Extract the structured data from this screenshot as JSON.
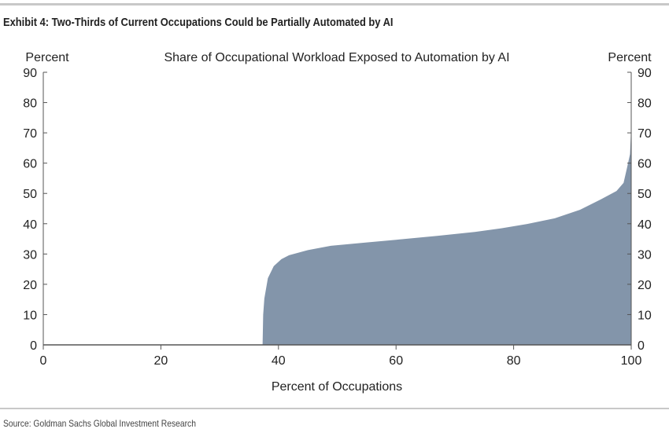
{
  "exhibit_title": "Exhibit 4: Two-Thirds of Current Occupations Could be Partially Automated by AI",
  "source": "Source: Goldman Sachs Global Investment Research",
  "chart_data": {
    "type": "area",
    "title": "Share of Occupational Workload Exposed to Automation by AI",
    "xlabel": "Percent of Occupations",
    "ylabel_left": "Percent",
    "ylabel_right": "Percent",
    "xlim": [
      0,
      100
    ],
    "ylim": [
      0,
      90
    ],
    "xticks": [
      0,
      20,
      40,
      60,
      80,
      100
    ],
    "yticks": [
      0,
      10,
      20,
      30,
      40,
      50,
      60,
      70,
      80,
      90
    ],
    "grid": false,
    "fill_color": "#8395aa",
    "x": [
      0,
      37.3,
      37.4,
      37.6,
      38.2,
      39.2,
      40.5,
      41.8,
      45,
      48.9,
      55,
      60,
      67,
      73.4,
      78,
      82.3,
      87,
      91.3,
      95,
      97.5,
      98.7,
      99.3,
      99.8,
      100
    ],
    "y": [
      0,
      0,
      10,
      15.3,
      22,
      26,
      28.3,
      29.6,
      31.3,
      32.7,
      33.8,
      34.7,
      36,
      37.3,
      38.5,
      39.9,
      41.8,
      44.6,
      48.2,
      50.8,
      53.5,
      58.6,
      63,
      72
    ]
  }
}
